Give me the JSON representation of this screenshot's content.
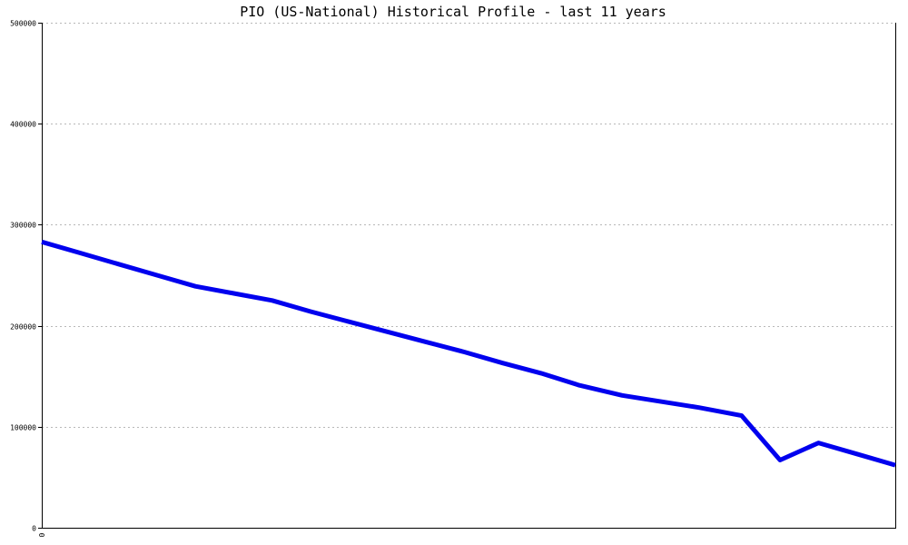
{
  "chart_data": {
    "type": "line",
    "title": "PIO (US-National) Historical Profile - last 11 years",
    "xlabel": "",
    "ylabel": "",
    "ylim": [
      0,
      500000
    ],
    "yticks": [
      0,
      100000,
      200000,
      300000,
      400000,
      500000
    ],
    "ytick_labels": [
      "0",
      "100000",
      "200000",
      "300000",
      "400000",
      "500000"
    ],
    "xtick_labels": [
      "0"
    ],
    "grid": true,
    "series": [
      {
        "color": "#0000ee",
        "x": [
          0,
          0.045,
          0.09,
          0.135,
          0.18,
          0.225,
          0.27,
          0.315,
          0.36,
          0.405,
          0.45,
          0.495,
          0.54,
          0.585,
          0.63,
          0.68,
          0.77,
          0.82,
          0.865,
          0.91,
          0.955,
          1
        ],
        "values": [
          283000,
          272000,
          261000,
          250000,
          239000,
          232000,
          225000,
          214000,
          204000,
          194000,
          184000,
          174000,
          163000,
          153000,
          141000,
          131000,
          119000,
          111000,
          67000,
          84000,
          73000,
          62000
        ]
      }
    ]
  }
}
